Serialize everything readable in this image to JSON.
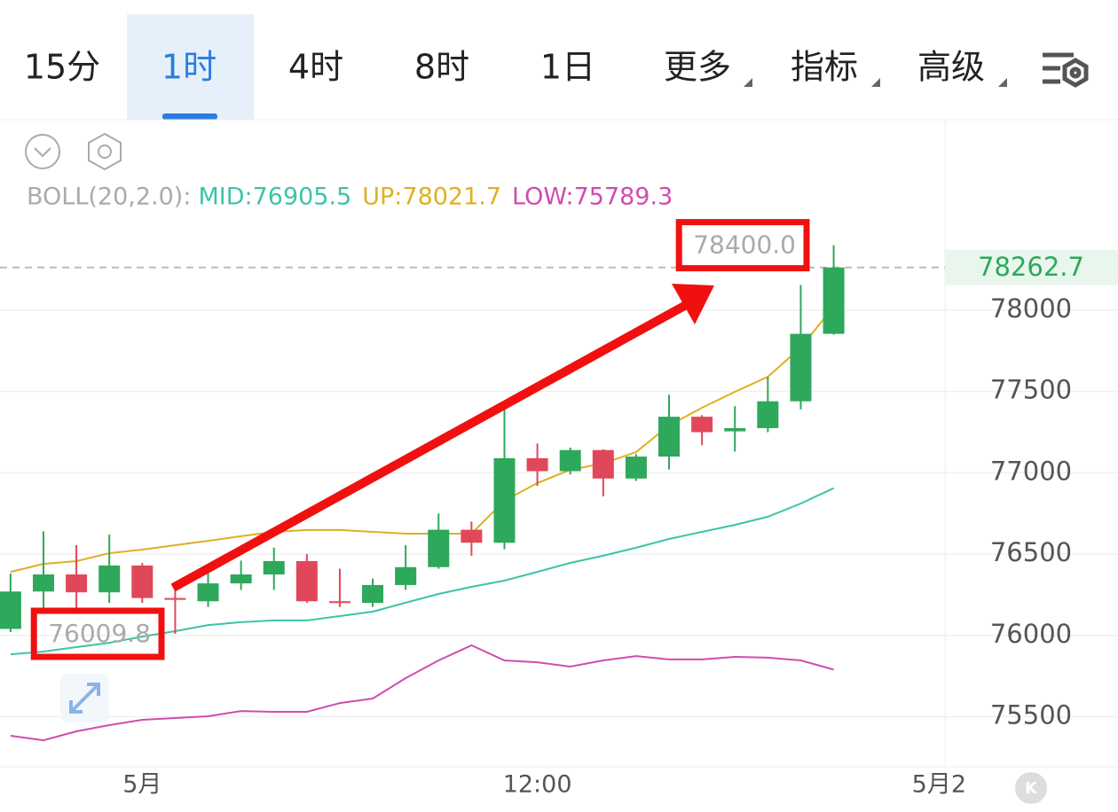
{
  "tabs": [
    "15分",
    "1时",
    "4时",
    "8时",
    "1日",
    "更多",
    "指标",
    "高级"
  ],
  "active_tab": 1,
  "chart_data": {
    "type": "candlestick",
    "indicator_label": "BOLL(20,2.0):",
    "open": [
      76040,
      76270,
      76375,
      76265,
      76430,
      76230,
      76210,
      76320,
      76375,
      76457,
      76210,
      76200,
      76310,
      76420,
      76650,
      76570,
      77090,
      77010,
      77140,
      76965,
      77100,
      77345,
      77255,
      77275,
      77440,
      77855
    ],
    "high": [
      76380,
      76640,
      76555,
      76620,
      76445,
      76310,
      76420,
      76460,
      76540,
      76500,
      76410,
      76350,
      76555,
      76750,
      76700,
      77400,
      77180,
      77155,
      77145,
      77115,
      77480,
      77355,
      77410,
      77590,
      78155,
      78400
    ],
    "low": [
      76020,
      76150,
      76150,
      76200,
      76200,
      76009.8,
      76175,
      76280,
      76280,
      76200,
      76175,
      76175,
      76280,
      76410,
      76490,
      76530,
      76920,
      76990,
      76855,
      76950,
      77020,
      77170,
      77130,
      77250,
      77390,
      77850
    ],
    "close": [
      76270,
      76375,
      76265,
      76430,
      76230,
      76225,
      76320,
      76375,
      76457,
      76210,
      76200,
      76310,
      76420,
      76650,
      76570,
      77090,
      77010,
      77140,
      76965,
      77100,
      77345,
      77250,
      77275,
      77440,
      77855,
      78262.7
    ],
    "up_color": "#2ea85a",
    "down_color": "#e0485a",
    "series": [
      {
        "name": "MID:76905.5",
        "color": "#3cc4a8",
        "values": [
          75884,
          75901,
          75928,
          75955,
          75993,
          76026,
          76064,
          76081,
          76092,
          76092,
          76119,
          76146,
          76201,
          76255,
          76299,
          76337,
          76391,
          76446,
          76490,
          76539,
          76593,
          76637,
          76680,
          76730,
          76811,
          76905.5
        ]
      },
      {
        "name": "UP:78021.7",
        "color": "#e0b020",
        "values": [
          76391,
          76440,
          76457,
          76506,
          76528,
          76555,
          76582,
          76610,
          76637,
          76648,
          76648,
          76637,
          76626,
          76626,
          76626,
          76828,
          76937,
          77019,
          77057,
          77128,
          77291,
          77400,
          77498,
          77591,
          77771,
          78021.7
        ]
      },
      {
        "name": "LOW:75789.3",
        "color": "#d04cb0",
        "values": [
          75383,
          75355,
          75410,
          75448,
          75481,
          75492,
          75503,
          75535,
          75530,
          75530,
          75584,
          75612,
          75737,
          75846,
          75939,
          75846,
          75835,
          75808,
          75846,
          75873,
          75852,
          75852,
          75868,
          75863,
          75846,
          75789.3
        ]
      }
    ],
    "current_price": 78262.7,
    "annotations": [
      {
        "value": 78400,
        "label": "78400.0"
      },
      {
        "value": 76009.8,
        "label": "76009.8"
      }
    ],
    "ylim": [
      75192,
      79172
    ],
    "yticks": [
      75500,
      76000,
      76500,
      77000,
      77500,
      78000
    ],
    "xlim": [
      -0.32,
      28.38
    ],
    "xticks": [
      {
        "value": 4,
        "label": "5月"
      },
      {
        "value": 16,
        "label": "12:00"
      },
      {
        "value": 28.2,
        "label": "5月2"
      }
    ],
    "grid": true
  }
}
